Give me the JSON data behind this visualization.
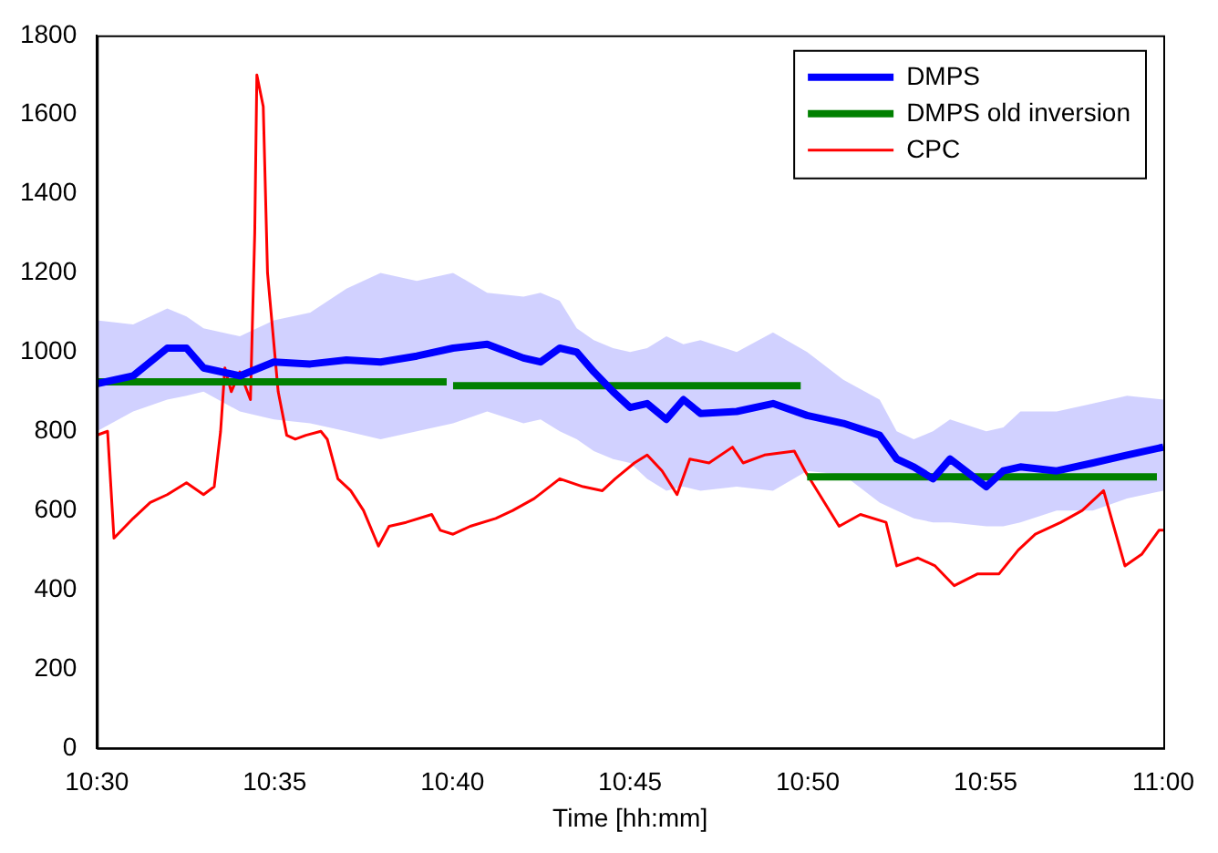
{
  "chart_data": {
    "type": "line",
    "xlabel": "Time [hh:mm]",
    "xlim": [
      10.5,
      11
    ],
    "xticks": [
      {
        "value": 10.5,
        "label": "10:30"
      },
      {
        "value": 10.5833,
        "label": "10:35"
      },
      {
        "value": 10.6667,
        "label": "10:40"
      },
      {
        "value": 10.75,
        "label": "10:45"
      },
      {
        "value": 10.8333,
        "label": "10:50"
      },
      {
        "value": 10.9167,
        "label": "10:55"
      },
      {
        "value": 11,
        "label": "11:00"
      }
    ],
    "ylim": [
      0,
      1800
    ],
    "yticks": [
      0,
      200,
      400,
      600,
      800,
      1000,
      1200,
      1400,
      1600,
      1800
    ],
    "grid": false,
    "legend": "top right",
    "marker": "none",
    "line_style": "solid",
    "series": [
      {
        "name": "DMPS",
        "color": "#0000ff",
        "x": [
          10.5,
          10.517,
          10.533,
          10.542,
          10.55,
          10.567,
          10.583,
          10.6,
          10.617,
          10.633,
          10.65,
          10.667,
          10.683,
          10.7,
          10.708,
          10.717,
          10.725,
          10.733,
          10.742,
          10.75,
          10.758,
          10.767,
          10.775,
          10.783,
          10.8,
          10.817,
          10.833,
          10.85,
          10.867,
          10.875,
          10.883,
          10.892,
          10.9,
          10.917,
          10.925,
          10.933,
          10.95,
          10.967,
          10.983,
          11
        ],
        "values": [
          920,
          940,
          1010,
          1010,
          960,
          940,
          975,
          970,
          980,
          975,
          990,
          1010,
          1020,
          985,
          975,
          1010,
          1000,
          950,
          900,
          860,
          870,
          830,
          880,
          845,
          850,
          870,
          840,
          820,
          790,
          730,
          710,
          680,
          730,
          660,
          700,
          710,
          700,
          720,
          740,
          760
        ],
        "upper": [
          1080,
          1070,
          1110,
          1090,
          1060,
          1040,
          1080,
          1100,
          1160,
          1200,
          1180,
          1200,
          1150,
          1140,
          1150,
          1130,
          1060,
          1030,
          1010,
          1000,
          1010,
          1040,
          1020,
          1030,
          1000,
          1050,
          1000,
          930,
          880,
          800,
          780,
          800,
          830,
          800,
          810,
          850,
          850,
          870,
          890,
          880
        ],
        "lower": [
          800,
          850,
          880,
          890,
          900,
          850,
          830,
          820,
          800,
          780,
          800,
          820,
          850,
          820,
          830,
          800,
          780,
          750,
          730,
          720,
          680,
          650,
          660,
          650,
          660,
          650,
          700,
          690,
          620,
          600,
          580,
          570,
          570,
          560,
          560,
          570,
          600,
          600,
          630,
          650
        ]
      },
      {
        "name": "DMPS old inversion",
        "color": "#008000",
        "x": [
          10.5,
          10.664,
          10.665,
          10.667,
          10.83,
          10.832,
          10.833,
          10.997
        ],
        "values": [
          925,
          925,
          null,
          915,
          915,
          null,
          685,
          685
        ]
      },
      {
        "name": "CPC",
        "color": "#ff0000",
        "x": [
          10.5,
          10.505,
          10.508,
          10.517,
          10.525,
          10.533,
          10.542,
          10.55,
          10.555,
          10.558,
          10.56,
          10.563,
          10.567,
          10.572,
          10.574,
          10.575,
          10.578,
          10.58,
          10.585,
          10.589,
          10.593,
          10.598,
          10.605,
          10.608,
          10.613,
          10.619,
          10.625,
          10.632,
          10.637,
          10.645,
          10.657,
          10.661,
          10.667,
          10.675,
          10.687,
          10.695,
          10.705,
          10.717,
          10.728,
          10.737,
          10.743,
          10.752,
          10.758,
          10.765,
          10.772,
          10.778,
          10.787,
          10.798,
          10.803,
          10.813,
          10.827,
          10.832,
          10.848,
          10.858,
          10.87,
          10.875,
          10.885,
          10.893,
          10.902,
          10.913,
          10.923,
          10.932,
          10.94,
          10.952,
          10.962,
          10.972,
          10.982,
          10.99,
          10.998,
          11
        ],
        "values": [
          790,
          800,
          530,
          580,
          620,
          640,
          670,
          640,
          660,
          800,
          960,
          900,
          950,
          880,
          1300,
          1700,
          1620,
          1200,
          900,
          790,
          780,
          790,
          800,
          780,
          680,
          650,
          600,
          510,
          560,
          570,
          590,
          550,
          540,
          560,
          580,
          600,
          630,
          680,
          660,
          650,
          680,
          720,
          740,
          700,
          640,
          730,
          720,
          760,
          720,
          740,
          750,
          700,
          560,
          590,
          570,
          460,
          480,
          460,
          410,
          440,
          440,
          500,
          540,
          570,
          600,
          650,
          460,
          490,
          550,
          550
        ]
      }
    ]
  }
}
